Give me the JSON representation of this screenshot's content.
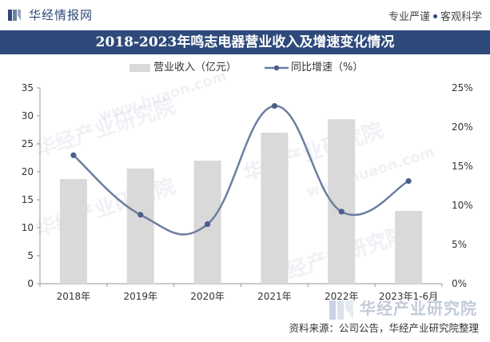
{
  "header": {
    "site_name": "华经情报网",
    "slogan_left": "专业严谨",
    "slogan_right": "客观科学"
  },
  "title": "2018-2023年鸣志电器营业收入及增速变化情况",
  "legend": {
    "bar_label": "营业收入（亿元）",
    "line_label": "同比增速（%）"
  },
  "watermark": {
    "text": "华经产业研究院",
    "url": "www.huaon.com"
  },
  "footer": {
    "brand": "华经产业研究院",
    "source": "资料来源：公司公告，华经产业研究院整理"
  },
  "colors": {
    "brand": "#2e4a7a",
    "bar": "#d9d9d9",
    "line": "#6b7ea0",
    "marker": "#4a5f8a"
  },
  "chart_data": {
    "type": "bar+line",
    "title": "2018-2023年鸣志电器营业收入及增速变化情况",
    "categories": [
      "2018年",
      "2019年",
      "2020年",
      "2021年",
      "2022年",
      "2023年1-6月"
    ],
    "series": [
      {
        "name": "营业收入（亿元）",
        "type": "bar",
        "axis": "left",
        "values": [
          18.7,
          20.6,
          22.0,
          27.0,
          29.4,
          13.0
        ]
      },
      {
        "name": "同比增速（%）",
        "type": "line",
        "axis": "right",
        "values": [
          16.4,
          8.8,
          7.6,
          22.7,
          9.2,
          13.1
        ]
      }
    ],
    "y_left": {
      "min": 0,
      "max": 35,
      "ticks": [
        "0",
        "5",
        "10",
        "15",
        "20",
        "25",
        "30",
        "35"
      ]
    },
    "y_right": {
      "min": 0,
      "max": 25,
      "ticks": [
        "0%",
        "5%",
        "10%",
        "15%",
        "20%",
        "25%"
      ]
    },
    "grid": false,
    "legend_position": "top"
  }
}
